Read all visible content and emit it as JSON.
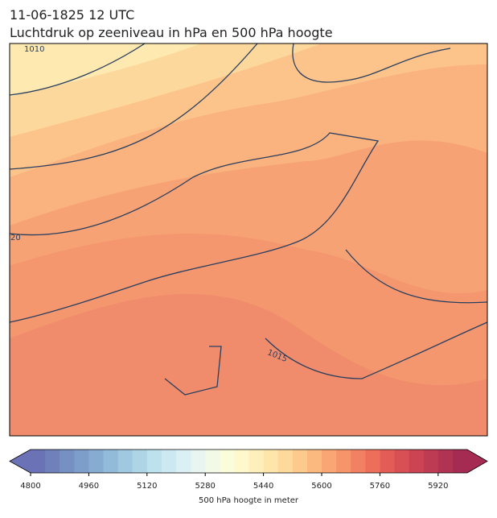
{
  "title": "11-06-1825 12 UTC",
  "subtitle": "Luchtdruk op zeeniveau in hPa en 500 hPa hoogte",
  "map": {
    "contour_labels": [
      "1010",
      "20",
      "1015"
    ]
  },
  "colorbar": {
    "label": "500 hPa hoogte in meter",
    "lim": [
      4800,
      6000
    ],
    "ticks": [
      4800,
      4960,
      5120,
      5280,
      5440,
      5600,
      5760,
      5920
    ],
    "colors": [
      "#6b72b5",
      "#6f80bb",
      "#7690c3",
      "#7d9dca",
      "#86acd2",
      "#92bad9",
      "#a0c8e0",
      "#aed5e6",
      "#bde1ed",
      "#cce9f2",
      "#dbf0f5",
      "#e8f5f1",
      "#f2f9e6",
      "#fbfcd9",
      "#fff8cc",
      "#fff0bb",
      "#fee6ab",
      "#fed99c",
      "#fdca8d",
      "#fcb97f",
      "#f9a674",
      "#f6946a",
      "#f28062",
      "#ec6e5b",
      "#e35d56",
      "#d84f54",
      "#cc4454",
      "#be3b54",
      "#b03354",
      "#a52b52"
    ]
  }
}
